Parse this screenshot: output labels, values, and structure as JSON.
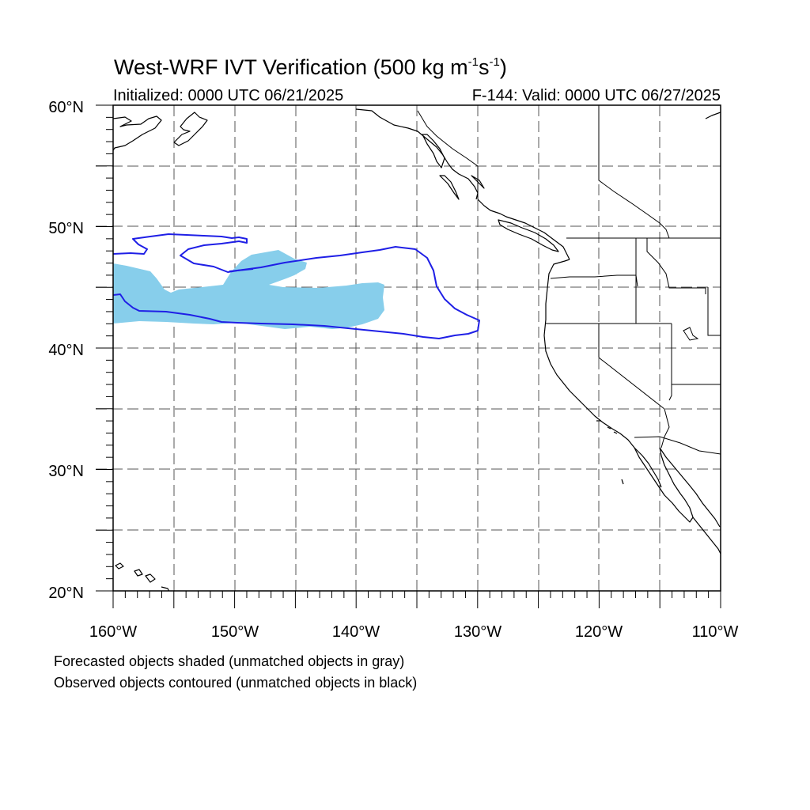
{
  "title": {
    "main": "West-WRF IVT Verification (500 kg m",
    "exp1": "-1",
    "mid": "s",
    "exp2": "-1",
    "end": ")"
  },
  "subtitle": {
    "left": "Initialized: 0000 UTC 06/21/2025",
    "right": "F-144: Valid: 0000 UTC 06/27/2025"
  },
  "axes": {
    "lat_labels": [
      "60°N",
      "50°N",
      "40°N",
      "30°N",
      "20°N"
    ],
    "lon_labels": [
      "160°W",
      "150°W",
      "140°W",
      "130°W",
      "120°W",
      "110°W"
    ],
    "lat_range": [
      20,
      60
    ],
    "lon_range": [
      -160,
      -110
    ],
    "grid": "dashed every 5 degrees"
  },
  "notes": {
    "line1": "Forecasted objects shaded (unmatched objects in gray)",
    "line2": "Observed objects contoured (unmatched objects in black)"
  },
  "colors": {
    "forecast_fill": "#87ceeb",
    "observed_contour": "#1f1fe6",
    "coastline": "#000000",
    "grid": "#555555"
  }
}
